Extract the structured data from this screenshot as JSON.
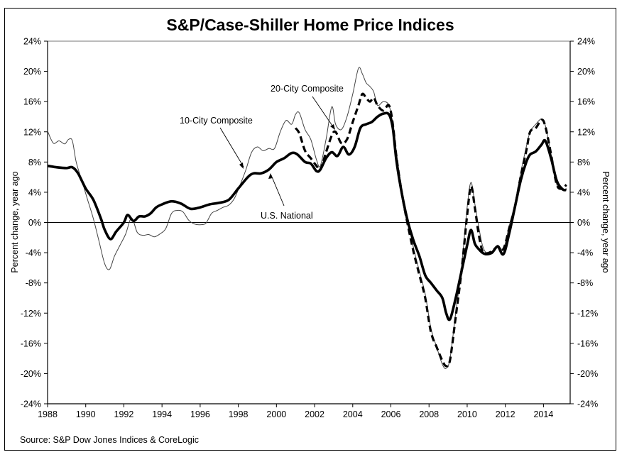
{
  "chart_data": {
    "type": "line",
    "title": "S&P/Case-Shiller Home Price Indices",
    "xlabel": "",
    "ylabel": "Percent change, year ago",
    "ylabel_right": "Percent change, year ago",
    "xlim": [
      1988,
      2015.4
    ],
    "ylim": [
      -24,
      24
    ],
    "x_ticks": [
      1988,
      1990,
      1992,
      1994,
      1996,
      1998,
      2000,
      2002,
      2004,
      2006,
      2008,
      2010,
      2012,
      2014
    ],
    "x_tick_labels": [
      "1988",
      "1990",
      "1992",
      "1994",
      "1996",
      "1998",
      "2000",
      "2002",
      "2004",
      "2006",
      "2008",
      "2010",
      "2012",
      "2014"
    ],
    "y_ticks": [
      24,
      20,
      16,
      12,
      8,
      4,
      0,
      -4,
      -8,
      -12,
      -16,
      -20,
      -24
    ],
    "y_tick_labels": [
      "24%",
      "20%",
      "16%",
      "12%",
      "8%",
      "4%",
      "0%",
      "-4%",
      "-8%",
      "-12%",
      "-16%",
      "-20%",
      "-24%"
    ],
    "grid": false,
    "zero_line": true,
    "source": "Source: S&P Dow Jones Indices & CoreLogic",
    "series": [
      {
        "name": "10-City Composite",
        "style": "thin",
        "x": [
          1988.0,
          1988.3,
          1988.6,
          1988.9,
          1989.1,
          1989.3,
          1989.5,
          1989.8,
          1990.1,
          1990.4,
          1990.7,
          1991.0,
          1991.25,
          1991.5,
          1991.8,
          1992.1,
          1992.4,
          1992.7,
          1993.0,
          1993.3,
          1993.6,
          1993.9,
          1994.2,
          1994.5,
          1994.8,
          1995.1,
          1995.4,
          1995.7,
          1996.0,
          1996.3,
          1996.6,
          1996.9,
          1997.2,
          1997.5,
          1997.8,
          1998.1,
          1998.4,
          1998.7,
          1999.0,
          1999.3,
          1999.6,
          1999.9,
          2000.2,
          2000.5,
          2000.8,
          2001.0,
          2001.2,
          2001.5,
          2001.8,
          2002.1,
          2002.3,
          2002.6,
          2002.9,
          2003.1,
          2003.4,
          2003.7,
          2004.0,
          2004.3,
          2004.5,
          2004.7,
          2004.9,
          2005.1,
          2005.3,
          2005.6,
          2005.9,
          2006.1,
          2006.3,
          2006.6,
          2006.9,
          2007.2,
          2007.5,
          2007.8,
          2008.1,
          2008.4,
          2008.7,
          2008.9,
          2009.1,
          2009.4,
          2009.7,
          2010.0,
          2010.2,
          2010.4,
          2010.6,
          2010.8,
          2011.0,
          2011.3,
          2011.6,
          2011.9,
          2012.2,
          2012.5,
          2012.8,
          2013.1,
          2013.3,
          2013.6,
          2013.9,
          2014.1,
          2014.4,
          2014.7,
          2015.0,
          2015.2
        ],
        "values": [
          12.1,
          10.5,
          10.8,
          10.4,
          11.0,
          10.8,
          8.0,
          5.5,
          3.0,
          0.5,
          -2.5,
          -5.5,
          -6.2,
          -4.5,
          -3.0,
          -1.5,
          0.6,
          -1.3,
          -1.7,
          -1.6,
          -1.9,
          -1.5,
          -0.8,
          1.2,
          1.6,
          1.4,
          0.3,
          -0.2,
          -0.3,
          -0.1,
          1.2,
          1.6,
          2.0,
          2.3,
          3.2,
          5.0,
          7.0,
          9.3,
          10.0,
          9.5,
          9.8,
          9.8,
          12.0,
          13.5,
          13.0,
          14.3,
          14.5,
          12.3,
          11.0,
          8.3,
          7.5,
          11.0,
          15.3,
          13.0,
          12.3,
          14.0,
          17.0,
          20.4,
          19.7,
          18.5,
          18.0,
          17.3,
          15.5,
          16.0,
          15.5,
          13.0,
          9.0,
          4.0,
          0.0,
          -3.5,
          -6.5,
          -9.5,
          -14.0,
          -16.5,
          -18.8,
          -19.3,
          -18.0,
          -12.0,
          -6.0,
          2.0,
          5.3,
          2.5,
          -0.5,
          -3.0,
          -4.0,
          -3.8,
          -3.0,
          -3.5,
          -0.5,
          2.5,
          6.5,
          10.0,
          12.0,
          13.0,
          13.7,
          12.8,
          9.0,
          5.0,
          4.3,
          4.5
        ]
      },
      {
        "name": "20-City Composite",
        "style": "dashed",
        "x": [
          2001.0,
          2001.2,
          2001.5,
          2001.8,
          2002.1,
          2002.3,
          2002.6,
          2002.9,
          2003.1,
          2003.4,
          2003.7,
          2004.0,
          2004.3,
          2004.5,
          2004.7,
          2004.9,
          2005.1,
          2005.3,
          2005.6,
          2005.9,
          2006.1,
          2006.3,
          2006.6,
          2006.9,
          2007.2,
          2007.5,
          2007.8,
          2008.1,
          2008.4,
          2008.7,
          2008.9,
          2009.1,
          2009.4,
          2009.7,
          2010.0,
          2010.2,
          2010.4,
          2010.6,
          2010.8,
          2011.0,
          2011.3,
          2011.6,
          2011.9,
          2012.2,
          2012.5,
          2012.8,
          2013.1,
          2013.3,
          2013.6,
          2013.9,
          2014.1,
          2014.4,
          2014.7,
          2015.0,
          2015.2
        ],
        "values": [
          12.5,
          11.8,
          9.5,
          8.5,
          7.5,
          7.0,
          9.3,
          11.5,
          12.0,
          10.5,
          11.0,
          13.3,
          15.5,
          17.0,
          16.5,
          16.0,
          16.5,
          15.5,
          14.8,
          15.5,
          13.0,
          8.5,
          3.5,
          -0.5,
          -4.0,
          -7.0,
          -10.0,
          -14.5,
          -16.5,
          -18.3,
          -19.0,
          -18.2,
          -12.5,
          -6.5,
          1.0,
          4.8,
          2.0,
          -1.5,
          -3.8,
          -4.1,
          -3.8,
          -3.2,
          -3.5,
          -0.8,
          2.0,
          6.0,
          9.5,
          12.0,
          12.5,
          13.6,
          12.7,
          9.0,
          5.0,
          4.5,
          5.0
        ]
      },
      {
        "name": "U.S. National",
        "style": "thick",
        "x": [
          1988.0,
          1988.5,
          1989.0,
          1989.3,
          1989.6,
          1990.0,
          1990.4,
          1990.8,
          1991.0,
          1991.3,
          1991.6,
          1992.0,
          1992.2,
          1992.5,
          1992.8,
          1993.1,
          1993.4,
          1993.7,
          1994.0,
          1994.5,
          1995.0,
          1995.5,
          1996.0,
          1996.5,
          1997.0,
          1997.5,
          1998.0,
          1998.5,
          1998.8,
          1999.2,
          1999.6,
          2000.0,
          2000.4,
          2000.8,
          2001.1,
          2001.5,
          2001.8,
          2002.1,
          2002.3,
          2002.6,
          2002.9,
          2003.2,
          2003.5,
          2003.8,
          2004.1,
          2004.4,
          2004.7,
          2005.0,
          2005.3,
          2005.6,
          2005.9,
          2006.1,
          2006.3,
          2006.6,
          2006.9,
          2007.2,
          2007.5,
          2007.8,
          2008.1,
          2008.4,
          2008.7,
          2008.9,
          2009.1,
          2009.4,
          2009.7,
          2010.0,
          2010.2,
          2010.4,
          2010.6,
          2010.8,
          2011.0,
          2011.3,
          2011.6,
          2011.9,
          2012.2,
          2012.5,
          2012.8,
          2013.1,
          2013.3,
          2013.6,
          2013.9,
          2014.1,
          2014.4,
          2014.7,
          2015.0,
          2015.2
        ],
        "values": [
          7.5,
          7.3,
          7.2,
          7.3,
          6.5,
          4.5,
          3.0,
          0.5,
          -1.0,
          -2.2,
          -1.2,
          0.0,
          1.0,
          0.2,
          0.8,
          0.8,
          1.2,
          2.0,
          2.4,
          2.8,
          2.5,
          1.8,
          2.0,
          2.4,
          2.6,
          3.0,
          4.5,
          6.0,
          6.5,
          6.5,
          7.0,
          8.0,
          8.5,
          9.2,
          9.0,
          8.0,
          7.8,
          6.8,
          7.0,
          8.5,
          9.3,
          8.8,
          10.0,
          9.0,
          10.0,
          12.5,
          13.0,
          13.3,
          14.0,
          14.4,
          14.3,
          12.5,
          8.0,
          3.5,
          0.0,
          -2.5,
          -4.5,
          -7.0,
          -8.0,
          -9.0,
          -10.0,
          -12.0,
          -12.8,
          -10.0,
          -6.5,
          -3.0,
          -1.0,
          -2.8,
          -3.5,
          -4.0,
          -4.2,
          -4.0,
          -3.2,
          -4.2,
          -1.5,
          2.0,
          5.5,
          8.0,
          9.0,
          9.4,
          10.3,
          10.8,
          8.5,
          5.5,
          4.4,
          4.3
        ]
      }
    ],
    "annotations": [
      {
        "text": "10-City Composite",
        "points_to": "10-City Composite",
        "near_x": 1998.8
      },
      {
        "text": "20-City Composite",
        "points_to": "20-City Composite",
        "near_x": 2002.6
      },
      {
        "text": "U.S. National",
        "points_to": "U.S. National",
        "near_x": 1999.7
      }
    ]
  }
}
